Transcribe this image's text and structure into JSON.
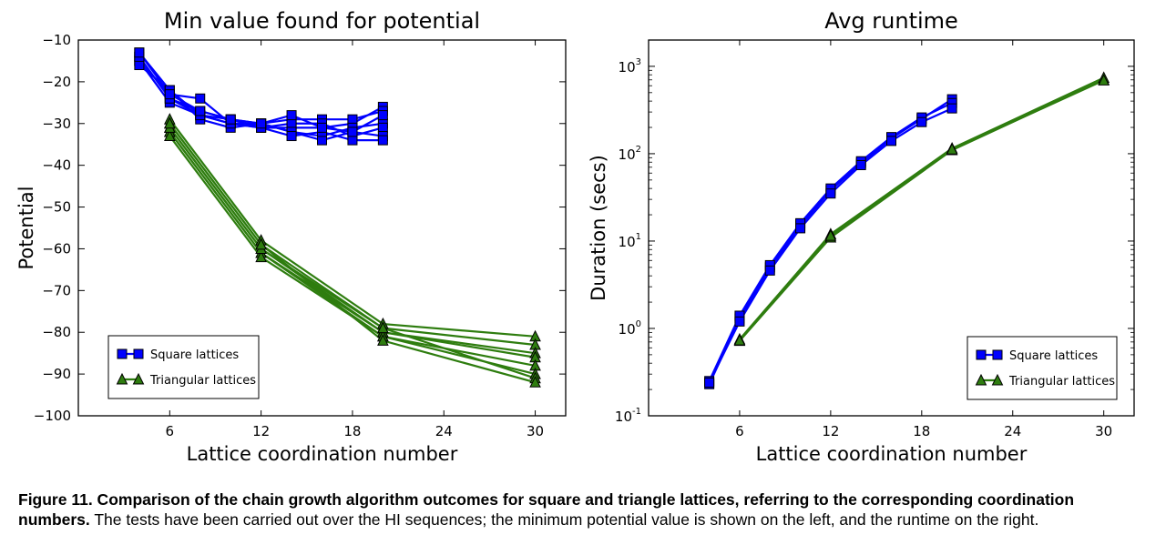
{
  "chart_data": [
    {
      "type": "line",
      "title": "Min value found for potential",
      "xlabel": "Lattice coordination number",
      "ylabel": "Potential",
      "xlim": [
        0,
        32
      ],
      "ylim": [
        -100,
        -10
      ],
      "xticks": [
        6,
        12,
        18,
        24,
        30
      ],
      "yticks": [
        -100,
        -90,
        -80,
        -70,
        -60,
        -50,
        -40,
        -30,
        -20,
        -10
      ],
      "ytick_labels": [
        "−100",
        "−90",
        "−80",
        "−70",
        "−60",
        "−50",
        "−40",
        "−30",
        "−20",
        "−10"
      ],
      "legend": {
        "position": "lower-left",
        "entries": [
          "Square lattices",
          "Triangular lattices"
        ]
      },
      "grid": false,
      "series_groups": [
        {
          "name": "Square lattices",
          "color": "#0000ff",
          "marker": "square",
          "x": [
            4,
            6,
            8,
            10,
            12,
            14,
            16,
            18,
            20
          ],
          "series": [
            [
              -13,
              -22,
              -28,
              -30,
              -31,
              -31,
              -31,
              -30,
              -26
            ],
            [
              -14,
              -24,
              -27,
              -29,
              -30,
              -29,
              -29,
              -29,
              -27
            ],
            [
              -15,
              -23,
              -24,
              -30,
              -30,
              -32,
              -33,
              -31,
              -30
            ],
            [
              -15,
              -25,
              -28,
              -29,
              -31,
              -30,
              -30,
              -33,
              -31
            ],
            [
              -16,
              -22,
              -29,
              -31,
              -30,
              -32,
              -34,
              -32,
              -33
            ],
            [
              -14,
              -24,
              -28,
              -30,
              -31,
              -33,
              -32,
              -34,
              -34
            ],
            [
              -13,
              -23,
              -27,
              -29,
              -30,
              -28,
              -31,
              -32,
              -28
            ]
          ]
        },
        {
          "name": "Triangular lattices",
          "color": "#2e7d0f",
          "marker": "triangle",
          "x": [
            6,
            12,
            20,
            30
          ],
          "series": [
            [
              -29,
              -58,
              -78,
              -81
            ],
            [
              -30,
              -59,
              -79,
              -83
            ],
            [
              -31,
              -60,
              -80,
              -85
            ],
            [
              -32,
              -61,
              -80,
              -86
            ],
            [
              -32,
              -61,
              -81,
              -88
            ],
            [
              -33,
              -62,
              -81,
              -90
            ],
            [
              -31,
              -60,
              -79,
              -91
            ],
            [
              -30,
              -59,
              -82,
              -92
            ]
          ]
        }
      ]
    },
    {
      "type": "line",
      "title": "Avg runtime",
      "xlabel": "Lattice coordination number",
      "ylabel": "Duration (secs)",
      "xlim": [
        0,
        32
      ],
      "ylim": [
        0.1,
        2000
      ],
      "yscale": "log",
      "xticks": [
        6,
        12,
        18,
        24,
        30
      ],
      "yticks": [
        0.1,
        1,
        10,
        100,
        1000
      ],
      "ytick_labels": [
        [
          "10",
          "-1"
        ],
        [
          "10",
          "0"
        ],
        [
          "10",
          "1"
        ],
        [
          "10",
          "2"
        ],
        [
          "10",
          "3"
        ]
      ],
      "legend": {
        "position": "lower-right",
        "entries": [
          "Square lattices",
          "Triangular lattices"
        ]
      },
      "grid": false,
      "series_groups": [
        {
          "name": "Square lattices",
          "color": "#0000ff",
          "marker": "square",
          "x": [
            4,
            6,
            8,
            10,
            12,
            14,
            16,
            18,
            20
          ],
          "series": [
            [
              0.23,
              1.3,
              5.0,
              15,
              38,
              78,
              150,
              250,
              420
            ],
            [
              0.25,
              1.4,
              5.3,
              16,
              40,
              82,
              155,
              260,
              380
            ],
            [
              0.24,
              1.2,
              4.6,
              14,
              35,
              74,
              140,
              230,
              330
            ]
          ]
        },
        {
          "name": "Triangular lattices",
          "color": "#2e7d0f",
          "marker": "triangle",
          "x": [
            6,
            12,
            20,
            30
          ],
          "series": [
            [
              0.72,
              11,
              110,
              700
            ],
            [
              0.75,
              12,
              115,
              740
            ],
            [
              0.73,
              11.5,
              112,
              690
            ]
          ]
        }
      ]
    }
  ],
  "caption": {
    "bold": "Figure 11. Comparison of the chain growth algorithm outcomes for square and triangle lattices, referring to the corresponding coordination numbers.",
    "text": " The tests have been carried out over the HI sequences; the minimum potential value is shown on the left, and the runtime on the right."
  }
}
